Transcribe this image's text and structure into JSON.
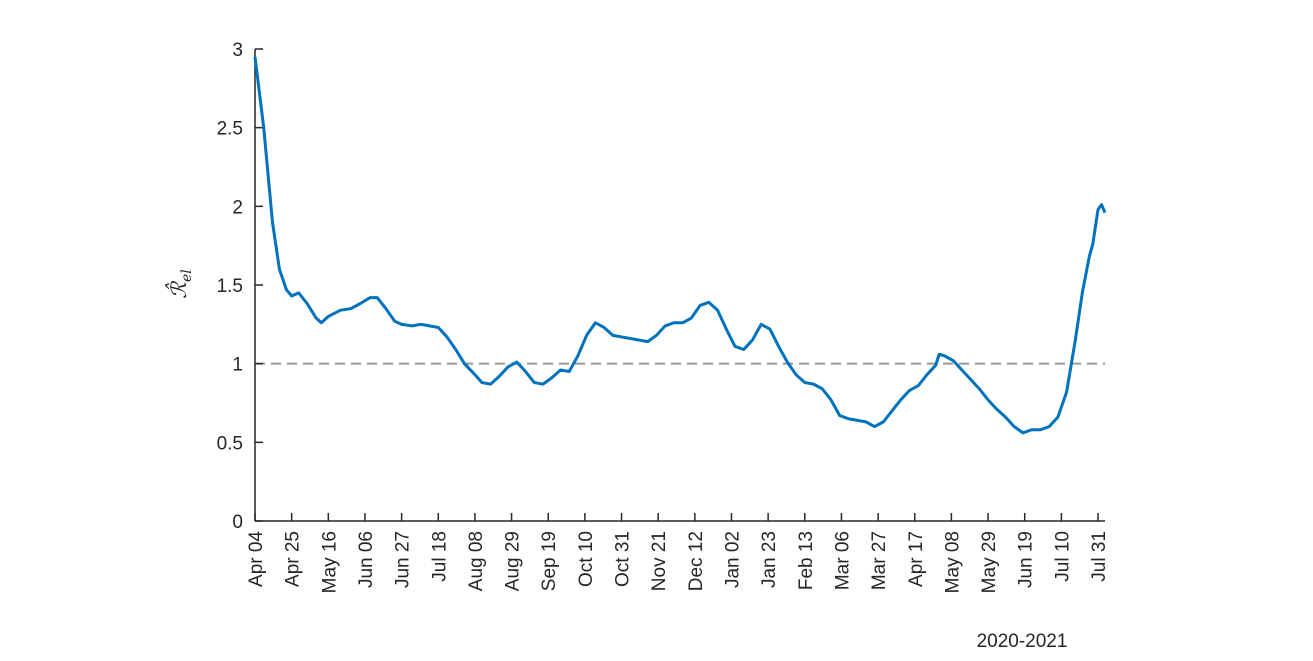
{
  "chart_data": {
    "type": "line",
    "ylabel": {
      "main": "ℛ̂",
      "sub": "el"
    },
    "xlabel": "2020-2021",
    "x": [
      0,
      5,
      10,
      14,
      18,
      21,
      25,
      30,
      35,
      38,
      42,
      49,
      55,
      60,
      66,
      70,
      75,
      80,
      84,
      90,
      95,
      100,
      105,
      110,
      115,
      120,
      126,
      130,
      135,
      140,
      145,
      150,
      155,
      160,
      165,
      170,
      175,
      180,
      185,
      190,
      195,
      200,
      205,
      210,
      215,
      220,
      225,
      230,
      235,
      240,
      245,
      250,
      255,
      260,
      265,
      270,
      275,
      280,
      285,
      290,
      295,
      300,
      305,
      310,
      315,
      320,
      325,
      330,
      335,
      340,
      345,
      350,
      355,
      360,
      365,
      370,
      375,
      380,
      385,
      390,
      392,
      395,
      400,
      405,
      410,
      415,
      420,
      425,
      430,
      435,
      440,
      445,
      450,
      455,
      460,
      465,
      470,
      474,
      478,
      480,
      483,
      485,
      487
    ],
    "series": [
      {
        "name": "R",
        "color": "#0072bd",
        "values": [
          2.95,
          2.5,
          1.9,
          1.6,
          1.47,
          1.43,
          1.45,
          1.38,
          1.29,
          1.26,
          1.3,
          1.34,
          1.35,
          1.38,
          1.42,
          1.42,
          1.35,
          1.27,
          1.25,
          1.24,
          1.25,
          1.24,
          1.23,
          1.17,
          1.09,
          1.0,
          0.93,
          0.88,
          0.87,
          0.92,
          0.98,
          1.01,
          0.95,
          0.88,
          0.87,
          0.91,
          0.96,
          0.95,
          1.05,
          1.18,
          1.26,
          1.23,
          1.18,
          1.17,
          1.16,
          1.15,
          1.14,
          1.18,
          1.24,
          1.26,
          1.26,
          1.29,
          1.37,
          1.39,
          1.34,
          1.22,
          1.11,
          1.09,
          1.15,
          1.25,
          1.22,
          1.11,
          1.01,
          0.93,
          0.88,
          0.87,
          0.84,
          0.77,
          0.67,
          0.65,
          0.64,
          0.63,
          0.6,
          0.63,
          0.7,
          0.77,
          0.83,
          0.86,
          0.93,
          0.99,
          1.06,
          1.05,
          1.02,
          0.96,
          0.9,
          0.84,
          0.77,
          0.71,
          0.66,
          0.6,
          0.56,
          0.58,
          0.58,
          0.6,
          0.66,
          0.82,
          1.15,
          1.45,
          1.68,
          1.76,
          1.98,
          2.01,
          1.96
        ]
      }
    ],
    "hline": 1,
    "hline_color": "#999999",
    "xlim": [
      0,
      487
    ],
    "xticks": [
      {
        "value": 0,
        "label": "Apr 04"
      },
      {
        "value": 21,
        "label": "Apr 25"
      },
      {
        "value": 42,
        "label": "May 16"
      },
      {
        "value": 63,
        "label": "Jun 06"
      },
      {
        "value": 84,
        "label": "Jun 27"
      },
      {
        "value": 105,
        "label": "Jul 18"
      },
      {
        "value": 126,
        "label": "Aug 08"
      },
      {
        "value": 147,
        "label": "Aug 29"
      },
      {
        "value": 168,
        "label": "Sep 19"
      },
      {
        "value": 189,
        "label": "Oct 10"
      },
      {
        "value": 210,
        "label": "Oct 31"
      },
      {
        "value": 231,
        "label": "Nov 21"
      },
      {
        "value": 252,
        "label": "Dec 12"
      },
      {
        "value": 273,
        "label": "Jan 02"
      },
      {
        "value": 294,
        "label": "Jan 23"
      },
      {
        "value": 315,
        "label": "Feb 13"
      },
      {
        "value": 336,
        "label": "Mar 06"
      },
      {
        "value": 357,
        "label": "Mar 27"
      },
      {
        "value": 378,
        "label": "Apr 17"
      },
      {
        "value": 399,
        "label": "May 08"
      },
      {
        "value": 420,
        "label": "May 29"
      },
      {
        "value": 441,
        "label": "Jun 19"
      },
      {
        "value": 462,
        "label": "Jul 10"
      },
      {
        "value": 483,
        "label": "Jul 31"
      }
    ],
    "ylim": [
      0,
      3
    ],
    "yticks": [
      0,
      0.5,
      1,
      1.5,
      2,
      2.5,
      3
    ]
  }
}
